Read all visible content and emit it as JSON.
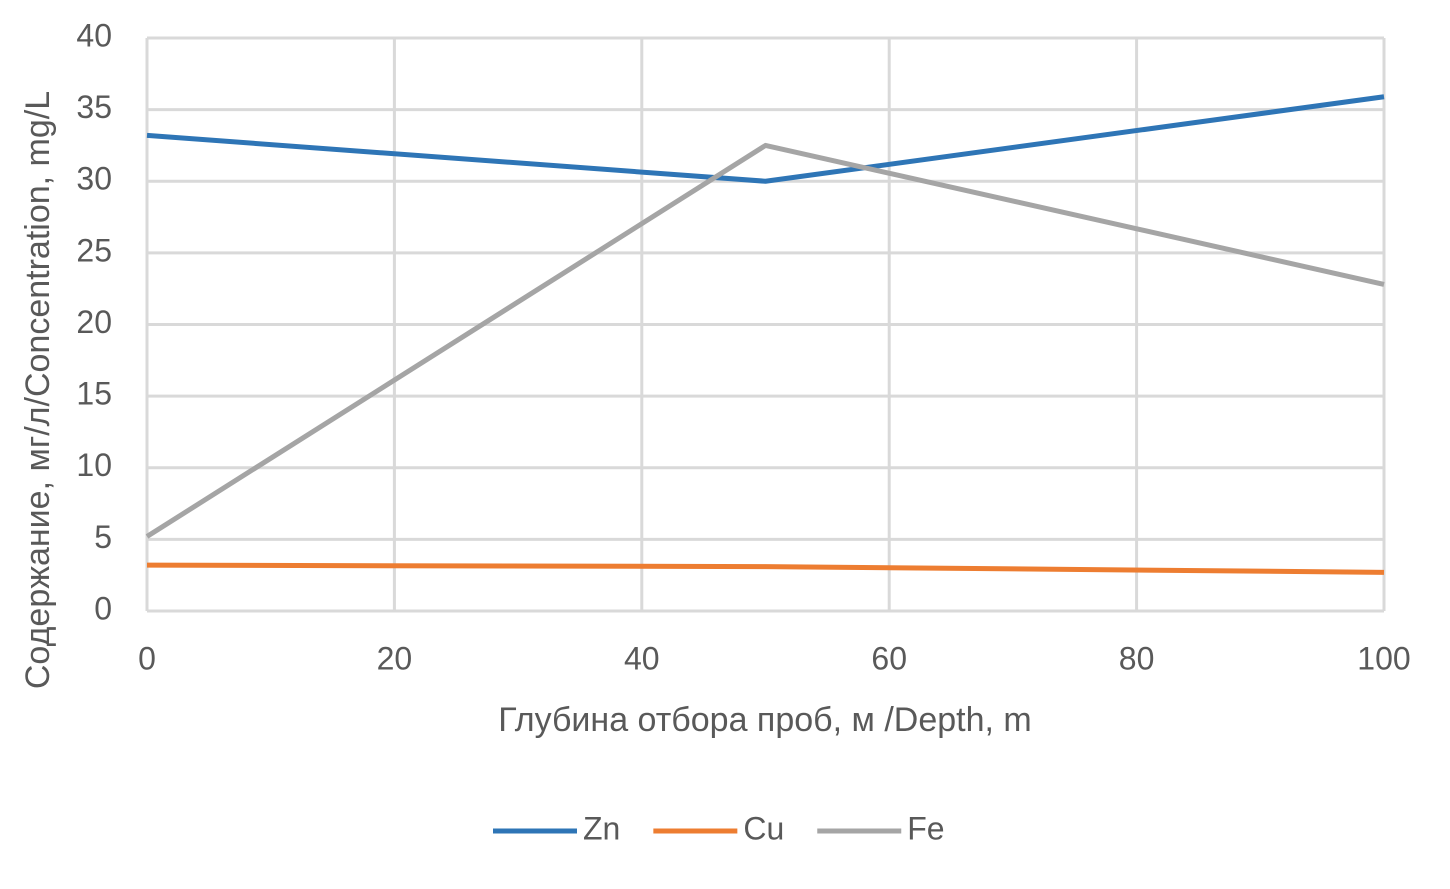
{
  "chart_data": {
    "type": "line",
    "x_label": "Глубина отбора проб, м /Depth, m",
    "y_label": "Содержание, мг/л/Concentration, mg/L",
    "x": [
      0,
      50,
      100
    ],
    "series": [
      {
        "name": "Zn",
        "color": "#2e75b6",
        "values": [
          33.2,
          30,
          35.9
        ]
      },
      {
        "name": "Cu",
        "color": "#ed7d31",
        "values": [
          3.2,
          3.1,
          2.7
        ]
      },
      {
        "name": "Fe",
        "color": "#a5a5a5",
        "values": [
          5.2,
          32.5,
          22.8
        ]
      }
    ],
    "xlim": [
      0,
      100
    ],
    "xticks": [
      0,
      20,
      40,
      60,
      80,
      100
    ],
    "ylim": [
      0,
      40
    ],
    "yticks": [
      0,
      5,
      10,
      15,
      20,
      25,
      30,
      35,
      40
    ],
    "grid": true,
    "legend": "bottom"
  }
}
